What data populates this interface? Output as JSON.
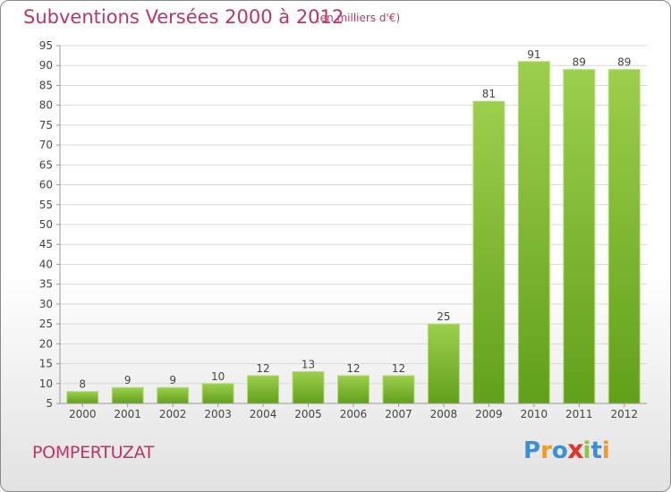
{
  "chart_data": {
    "type": "bar",
    "title": "Subventions Versées 2000 à 2012",
    "subtitle": "(en milliers d'€)",
    "categories": [
      "2000",
      "2001",
      "2002",
      "2003",
      "2004",
      "2005",
      "2006",
      "2007",
      "2008",
      "2009",
      "2010",
      "2011",
      "2012"
    ],
    "values": [
      8,
      9,
      9,
      10,
      12,
      13,
      12,
      12,
      25,
      81,
      91,
      89,
      89
    ],
    "xlabel": "",
    "ylabel": "",
    "ylim": [
      5,
      95
    ],
    "yticks": [
      5,
      10,
      15,
      20,
      25,
      30,
      35,
      40,
      45,
      50,
      55,
      60,
      65,
      70,
      75,
      80,
      85,
      90,
      95
    ],
    "grid": "horizontal",
    "bar_color_top": "#9ccf4c",
    "bar_color_bottom": "#62a01a"
  },
  "footer": {
    "location": "POMPERTUZAT",
    "logo_letters": [
      "P",
      "r",
      "o",
      "x",
      "i",
      "t",
      "i"
    ],
    "logo_colors": [
      "#3b8fd6",
      "#f29a1f",
      "#3b8fd6",
      "#e5332a",
      "#8cc63f",
      "#3b8fd6",
      "#f29a1f"
    ]
  }
}
